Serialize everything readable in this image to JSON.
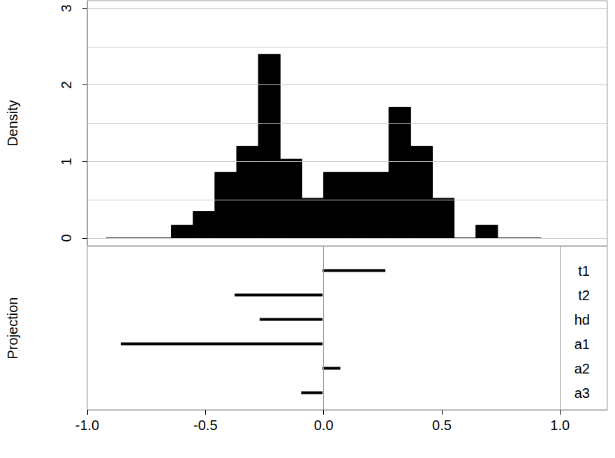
{
  "chart_data": [
    {
      "type": "histogram",
      "y_label": "Density",
      "bins": [
        -0.92,
        -0.828,
        -0.736,
        -0.644,
        -0.552,
        -0.46,
        -0.368,
        -0.276,
        -0.184,
        -0.092,
        0,
        0.092,
        0.184,
        0.276,
        0.368,
        0.46,
        0.552,
        0.644,
        0.736,
        0.828,
        0.92
      ],
      "values": [
        0,
        0,
        0,
        0.17,
        0.35,
        0.86,
        1.2,
        2.4,
        1.03,
        0.52,
        0.86,
        0.86,
        0.86,
        1.71,
        1.2,
        0.52,
        0,
        0.17,
        0,
        0
      ],
      "color": "#000000",
      "xlim": [
        -1,
        1.2
      ],
      "ylim": [
        -0.1,
        3.1
      ],
      "yticks": [
        0,
        1,
        2,
        3
      ],
      "grid": true,
      "tick_labels": "y"
    },
    {
      "type": "bar",
      "orientation": "horizontal",
      "y_label": "Projection",
      "categories": [
        "t1",
        "t2",
        "hd",
        "a1",
        "a2",
        "a3"
      ],
      "values": [
        0.265,
        -0.37,
        -0.265,
        -0.85,
        0.075,
        -0.09
      ],
      "color": "#000000",
      "xlim": [
        -1,
        1.2
      ],
      "xticks": [
        {
          "value": -1,
          "label": "-1.0"
        },
        {
          "value": -0.5,
          "label": "-0.5"
        },
        {
          "value": 0,
          "label": "0.0"
        },
        {
          "value": 0.5,
          "label": "0.5"
        },
        {
          "value": 1,
          "label": "1.0"
        }
      ]
    }
  ]
}
